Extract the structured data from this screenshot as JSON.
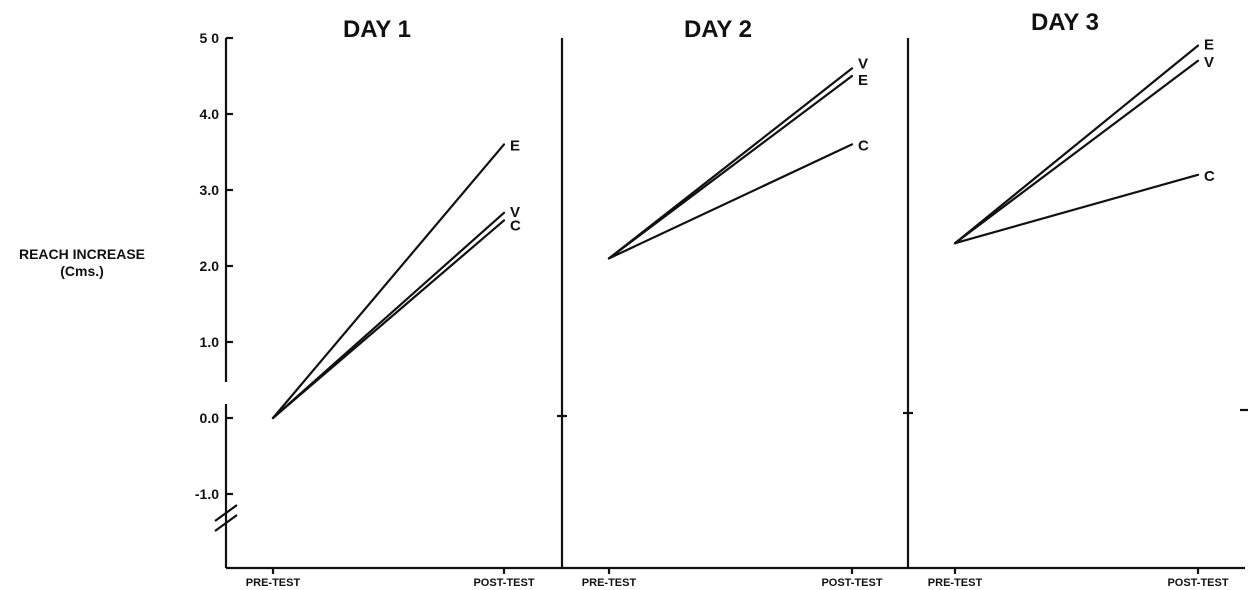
{
  "chart_data": {
    "type": "line",
    "ylabel": [
      "REACH INCREASE",
      "(Cms.)"
    ],
    "yticks": [
      {
        "value": 5.0,
        "label": "5 0"
      },
      {
        "value": 4.0,
        "label": "4.0"
      },
      {
        "value": 3.0,
        "label": "3.0"
      },
      {
        "value": 2.0,
        "label": "2.0"
      },
      {
        "value": 1.0,
        "label": "1.0"
      },
      {
        "value": 0.0,
        "label": "0.0"
      },
      {
        "value": -1.0,
        "label": "-1.0"
      }
    ],
    "ylim": [
      -1.6,
      5.0
    ],
    "axis_break": true,
    "x_categories": [
      "PRE-TEST",
      "POST-TEST"
    ],
    "panels": [
      {
        "title": "DAY 1",
        "series": [
          {
            "name": "E",
            "values": [
              0.0,
              3.6
            ]
          },
          {
            "name": "V",
            "values": [
              0.0,
              2.7
            ]
          },
          {
            "name": "C",
            "values": [
              0.0,
              2.6
            ]
          }
        ]
      },
      {
        "title": "DAY 2",
        "series": [
          {
            "name": "V",
            "values": [
              2.1,
              4.6
            ]
          },
          {
            "name": "E",
            "values": [
              2.1,
              4.5
            ]
          },
          {
            "name": "C",
            "values": [
              2.1,
              3.6
            ]
          }
        ]
      },
      {
        "title": "DAY 3",
        "series": [
          {
            "name": "E",
            "values": [
              2.3,
              4.9
            ]
          },
          {
            "name": "V",
            "values": [
              2.3,
              4.7
            ]
          },
          {
            "name": "C",
            "values": [
              2.3,
              3.2
            ]
          }
        ]
      }
    ]
  }
}
